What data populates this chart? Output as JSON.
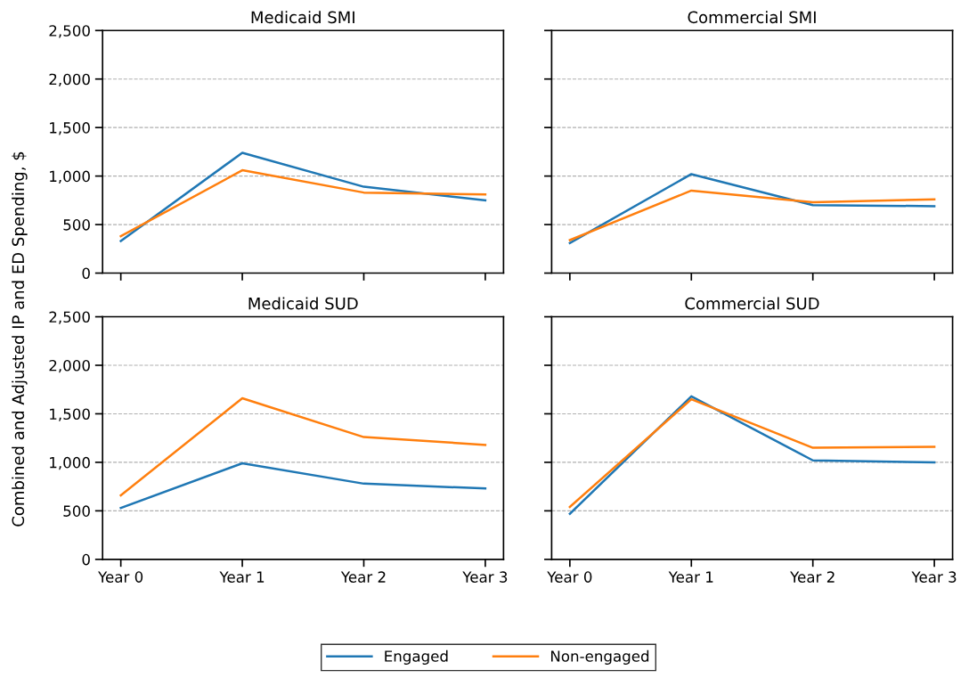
{
  "chart_data": [
    {
      "type": "line",
      "title": "Medicaid SMI",
      "ylabel": "Combined and Adjusted IP and ED Spending, $",
      "categories": [
        "Year 0",
        "Year 1",
        "Year 2",
        "Year 3"
      ],
      "ylim": [
        0,
        2500
      ],
      "yticks": [
        0,
        500,
        {
          "value": 1000,
          "label": "1,000"
        },
        {
          "value": 1500,
          "label": "1,500"
        },
        {
          "value": 2000,
          "label": "2,000"
        },
        {
          "value": 2500,
          "label": "2,500"
        }
      ],
      "grid": "y",
      "legend": "bottom",
      "tick_labels": "y",
      "series": [
        {
          "name": "Engaged",
          "color": "#1f77b4",
          "values": [
            330,
            1240,
            890,
            750
          ]
        },
        {
          "name": "Non-engaged",
          "color": "#ff7f0e",
          "values": [
            380,
            1060,
            830,
            810
          ]
        }
      ]
    },
    {
      "type": "line",
      "title": "Commercial SMI",
      "categories": [
        "Year 0",
        "Year 1",
        "Year 2",
        "Year 3"
      ],
      "ylim": [
        0,
        2500
      ],
      "yticks": [
        0,
        500,
        {
          "value": 1000,
          "label": "1,000"
        },
        {
          "value": 1500,
          "label": "1,500"
        },
        {
          "value": 2000,
          "label": "2,000"
        },
        {
          "value": 2500,
          "label": "2,500"
        }
      ],
      "grid": "y",
      "legend": "bottom",
      "tick_labels": false,
      "series": [
        {
          "name": "Engaged",
          "color": "#1f77b4",
          "values": [
            310,
            1020,
            700,
            690
          ]
        },
        {
          "name": "Non-engaged",
          "color": "#ff7f0e",
          "values": [
            340,
            850,
            730,
            760
          ]
        }
      ]
    },
    {
      "type": "line",
      "title": "Medicaid SUD",
      "categories": [
        "Year 0",
        "Year 1",
        "Year 2",
        "Year 3"
      ],
      "ylim": [
        0,
        2500
      ],
      "yticks": [
        0,
        500,
        {
          "value": 1000,
          "label": "1,000"
        },
        {
          "value": 1500,
          "label": "1,500"
        },
        {
          "value": 2000,
          "label": "2,000"
        },
        {
          "value": 2500,
          "label": "2,500"
        }
      ],
      "grid": "y",
      "legend": "bottom",
      "series": [
        {
          "name": "Engaged",
          "color": "#1f77b4",
          "values": [
            530,
            990,
            780,
            730
          ]
        },
        {
          "name": "Non-engaged",
          "color": "#ff7f0e",
          "values": [
            660,
            1660,
            1260,
            1180
          ]
        }
      ]
    },
    {
      "type": "line",
      "title": "Commercial SUD",
      "categories": [
        "Year 0",
        "Year 1",
        "Year 2",
        "Year 3"
      ],
      "ylim": [
        0,
        2500
      ],
      "yticks": [
        0,
        500,
        {
          "value": 1000,
          "label": "1,000"
        },
        {
          "value": 1500,
          "label": "1,500"
        },
        {
          "value": 2000,
          "label": "2,000"
        },
        {
          "value": 2500,
          "label": "2,500"
        }
      ],
      "grid": "y",
      "legend": "bottom",
      "tick_labels": "x",
      "series": [
        {
          "name": "Engaged",
          "color": "#1f77b4",
          "values": [
            470,
            1680,
            1020,
            1000
          ]
        },
        {
          "name": "Non-engaged",
          "color": "#ff7f0e",
          "values": [
            540,
            1650,
            1150,
            1160
          ]
        }
      ]
    }
  ]
}
